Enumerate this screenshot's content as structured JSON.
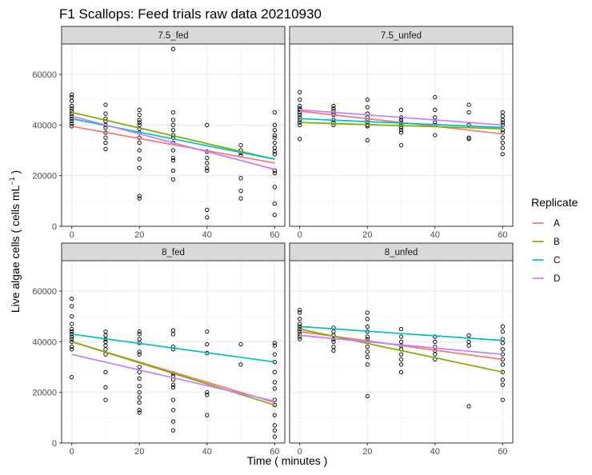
{
  "chart_data": {
    "type": "scatter",
    "title": "F1 Scallops: Feed trials raw data 20210930",
    "xlabel": "Time ( minutes )",
    "ylabel": "Live algae cells ( cells mL",
    "ylabel_sup": "−1",
    "ylabel_end": " )",
    "xlim": [
      -3,
      63
    ],
    "ylim": [
      0,
      72000
    ],
    "x_ticks": [
      0,
      20,
      40,
      60
    ],
    "y_ticks": [
      0,
      20000,
      40000,
      60000
    ],
    "grid": true,
    "legend_title": "Replicate",
    "legend_position": "right",
    "series": [
      {
        "name": "A",
        "color": "#F8766D"
      },
      {
        "name": "B",
        "color": "#7CAE00"
      },
      {
        "name": "C",
        "color": "#00BFC4"
      },
      {
        "name": "D",
        "color": "#C77CFF"
      }
    ],
    "panels": [
      {
        "label": "7.5_fed",
        "lines": [
          [
            39500,
            25000
          ],
          [
            45000,
            26500
          ],
          [
            42500,
            26500
          ],
          [
            43500,
            22500
          ]
        ],
        "points": [
          [
            0,
            52000
          ],
          [
            0,
            51000
          ],
          [
            0,
            49500
          ],
          [
            0,
            47500
          ],
          [
            0,
            46500
          ],
          [
            0,
            45500
          ],
          [
            0,
            44500
          ],
          [
            0,
            43500
          ],
          [
            0,
            42500
          ],
          [
            0,
            41500
          ],
          [
            0,
            40500
          ],
          [
            0,
            39500
          ],
          [
            10,
            48000
          ],
          [
            10,
            44500
          ],
          [
            10,
            42500
          ],
          [
            10,
            41500
          ],
          [
            10,
            40000
          ],
          [
            10,
            39000
          ],
          [
            10,
            37000
          ],
          [
            10,
            35000
          ],
          [
            10,
            33000
          ],
          [
            10,
            30500
          ],
          [
            20,
            46000
          ],
          [
            20,
            44000
          ],
          [
            20,
            42000
          ],
          [
            20,
            41000
          ],
          [
            20,
            40000
          ],
          [
            20,
            38500
          ],
          [
            20,
            37000
          ],
          [
            20,
            35000
          ],
          [
            20,
            33000
          ],
          [
            20,
            30000
          ],
          [
            20,
            26500
          ],
          [
            20,
            23000
          ],
          [
            20,
            12000
          ],
          [
            20,
            11000
          ],
          [
            30,
            70000
          ],
          [
            30,
            45000
          ],
          [
            30,
            42000
          ],
          [
            30,
            40000
          ],
          [
            30,
            38000
          ],
          [
            30,
            36000
          ],
          [
            30,
            35000
          ],
          [
            30,
            33000
          ],
          [
            30,
            30000
          ],
          [
            30,
            27000
          ],
          [
            30,
            26000
          ],
          [
            30,
            22000
          ],
          [
            30,
            18500
          ],
          [
            40,
            40000
          ],
          [
            40,
            29500
          ],
          [
            40,
            27000
          ],
          [
            40,
            25000
          ],
          [
            40,
            23000
          ],
          [
            40,
            22000
          ],
          [
            40,
            6500
          ],
          [
            40,
            3500
          ],
          [
            50,
            32000
          ],
          [
            50,
            30000
          ],
          [
            50,
            29000
          ],
          [
            50,
            28000
          ],
          [
            50,
            19000
          ],
          [
            50,
            14000
          ],
          [
            50,
            11000
          ],
          [
            60,
            45000
          ],
          [
            60,
            40000
          ],
          [
            60,
            38000
          ],
          [
            60,
            36000
          ],
          [
            60,
            35000
          ],
          [
            60,
            33000
          ],
          [
            60,
            31000
          ],
          [
            60,
            29500
          ],
          [
            60,
            28500
          ],
          [
            60,
            22000
          ],
          [
            60,
            21000
          ],
          [
            60,
            15500
          ],
          [
            60,
            9000
          ],
          [
            60,
            4500
          ]
        ]
      },
      {
        "label": "7.5_unfed",
        "lines": [
          [
            45500,
            36500
          ],
          [
            41000,
            38500
          ],
          [
            42500,
            39000
          ],
          [
            46000,
            40000
          ]
        ],
        "points": [
          [
            0,
            53000
          ],
          [
            0,
            50000
          ],
          [
            0,
            47500
          ],
          [
            0,
            46500
          ],
          [
            0,
            46000
          ],
          [
            0,
            45000
          ],
          [
            0,
            44000
          ],
          [
            0,
            43000
          ],
          [
            0,
            42000
          ],
          [
            0,
            41000
          ],
          [
            0,
            40000
          ],
          [
            0,
            34500
          ],
          [
            10,
            47500
          ],
          [
            10,
            46500
          ],
          [
            10,
            45500
          ],
          [
            10,
            44500
          ],
          [
            10,
            44000
          ],
          [
            10,
            42000
          ],
          [
            10,
            41000
          ],
          [
            10,
            40000
          ],
          [
            20,
            50000
          ],
          [
            20,
            47000
          ],
          [
            20,
            44500
          ],
          [
            20,
            43000
          ],
          [
            20,
            42000
          ],
          [
            20,
            41000
          ],
          [
            20,
            40000
          ],
          [
            20,
            39500
          ],
          [
            20,
            34000
          ],
          [
            30,
            46000
          ],
          [
            30,
            43000
          ],
          [
            30,
            42000
          ],
          [
            30,
            41000
          ],
          [
            30,
            40000
          ],
          [
            30,
            39000
          ],
          [
            30,
            38000
          ],
          [
            30,
            37000
          ],
          [
            30,
            32000
          ],
          [
            40,
            51000
          ],
          [
            40,
            46000
          ],
          [
            40,
            43000
          ],
          [
            40,
            41000
          ],
          [
            40,
            40000
          ],
          [
            40,
            36000
          ],
          [
            50,
            48000
          ],
          [
            50,
            45000
          ],
          [
            50,
            40000
          ],
          [
            50,
            35000
          ],
          [
            50,
            34500
          ],
          [
            60,
            45000
          ],
          [
            60,
            43500
          ],
          [
            60,
            42000
          ],
          [
            60,
            41000
          ],
          [
            60,
            40000
          ],
          [
            60,
            38000
          ],
          [
            60,
            37000
          ],
          [
            60,
            35000
          ],
          [
            60,
            33000
          ],
          [
            60,
            31000
          ],
          [
            60,
            28500
          ]
        ]
      },
      {
        "label": "8_fed",
        "lines": [
          [
            40000,
            16000
          ],
          [
            40000,
            15000
          ],
          [
            43000,
            32000
          ],
          [
            35000,
            16500
          ]
        ],
        "points": [
          [
            0,
            57000
          ],
          [
            0,
            54000
          ],
          [
            0,
            50000
          ],
          [
            0,
            47000
          ],
          [
            0,
            45000
          ],
          [
            0,
            44000
          ],
          [
            0,
            43000
          ],
          [
            0,
            42000
          ],
          [
            0,
            41000
          ],
          [
            0,
            40000
          ],
          [
            0,
            38000
          ],
          [
            0,
            37000
          ],
          [
            0,
            26000
          ],
          [
            10,
            44000
          ],
          [
            10,
            42500
          ],
          [
            10,
            41000
          ],
          [
            10,
            40000
          ],
          [
            10,
            38500
          ],
          [
            10,
            37000
          ],
          [
            10,
            35000
          ],
          [
            10,
            28000
          ],
          [
            10,
            22000
          ],
          [
            10,
            17000
          ],
          [
            20,
            44000
          ],
          [
            20,
            43000
          ],
          [
            20,
            41000
          ],
          [
            20,
            39500
          ],
          [
            20,
            36000
          ],
          [
            20,
            35000
          ],
          [
            20,
            30000
          ],
          [
            20,
            28000
          ],
          [
            20,
            25500
          ],
          [
            20,
            22500
          ],
          [
            20,
            20000
          ],
          [
            20,
            18000
          ],
          [
            20,
            16000
          ],
          [
            20,
            13000
          ],
          [
            20,
            12000
          ],
          [
            30,
            44500
          ],
          [
            30,
            43000
          ],
          [
            30,
            38000
          ],
          [
            30,
            37000
          ],
          [
            30,
            27500
          ],
          [
            30,
            26500
          ],
          [
            30,
            25000
          ],
          [
            30,
            23000
          ],
          [
            30,
            22000
          ],
          [
            30,
            17000
          ],
          [
            30,
            13000
          ],
          [
            30,
            8500
          ],
          [
            30,
            5000
          ],
          [
            40,
            44000
          ],
          [
            40,
            39000
          ],
          [
            40,
            35500
          ],
          [
            40,
            20000
          ],
          [
            40,
            19000
          ],
          [
            40,
            11000
          ],
          [
            50,
            39000
          ],
          [
            50,
            31000
          ],
          [
            60,
            39500
          ],
          [
            60,
            38500
          ],
          [
            60,
            35000
          ],
          [
            60,
            32000
          ],
          [
            60,
            28000
          ],
          [
            60,
            24000
          ],
          [
            60,
            21500
          ],
          [
            60,
            17000
          ],
          [
            60,
            15000
          ],
          [
            60,
            11000
          ],
          [
            60,
            7000
          ],
          [
            60,
            5000
          ],
          [
            60,
            2500
          ]
        ]
      },
      {
        "label": "8_unfed",
        "lines": [
          [
            44000,
            33000
          ],
          [
            45000,
            28000
          ],
          [
            46000,
            40500
          ],
          [
            42500,
            35000
          ]
        ],
        "points": [
          [
            0,
            52500
          ],
          [
            0,
            51500
          ],
          [
            0,
            49000
          ],
          [
            0,
            47000
          ],
          [
            0,
            46000
          ],
          [
            0,
            45000
          ],
          [
            0,
            44000
          ],
          [
            0,
            43000
          ],
          [
            0,
            42000
          ],
          [
            0,
            41000
          ],
          [
            10,
            45500
          ],
          [
            10,
            44000
          ],
          [
            10,
            42500
          ],
          [
            10,
            41000
          ],
          [
            10,
            40000
          ],
          [
            10,
            38000
          ],
          [
            10,
            36500
          ],
          [
            20,
            51500
          ],
          [
            20,
            49000
          ],
          [
            20,
            46000
          ],
          [
            20,
            44000
          ],
          [
            20,
            42000
          ],
          [
            20,
            41000
          ],
          [
            20,
            40000
          ],
          [
            20,
            38000
          ],
          [
            20,
            36000
          ],
          [
            20,
            34000
          ],
          [
            20,
            31000
          ],
          [
            20,
            18500
          ],
          [
            30,
            45000
          ],
          [
            30,
            42000
          ],
          [
            30,
            40000
          ],
          [
            30,
            38500
          ],
          [
            30,
            37000
          ],
          [
            30,
            35000
          ],
          [
            30,
            33000
          ],
          [
            30,
            31000
          ],
          [
            30,
            28000
          ],
          [
            40,
            42000
          ],
          [
            40,
            40000
          ],
          [
            40,
            38000
          ],
          [
            40,
            36500
          ],
          [
            40,
            35000
          ],
          [
            40,
            33000
          ],
          [
            50,
            42500
          ],
          [
            50,
            40000
          ],
          [
            50,
            38500
          ],
          [
            50,
            14500
          ],
          [
            60,
            46000
          ],
          [
            60,
            44000
          ],
          [
            60,
            41000
          ],
          [
            60,
            39500
          ],
          [
            60,
            37000
          ],
          [
            60,
            35000
          ],
          [
            60,
            33000
          ],
          [
            60,
            31000
          ],
          [
            60,
            28000
          ],
          [
            60,
            25000
          ],
          [
            60,
            23000
          ],
          [
            60,
            17000
          ]
        ]
      }
    ]
  }
}
